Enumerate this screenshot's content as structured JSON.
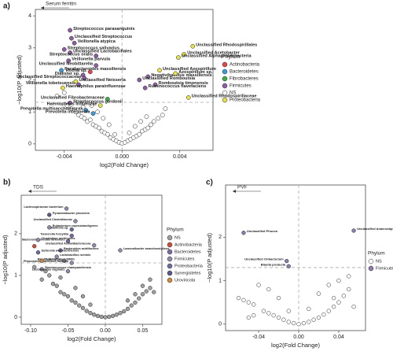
{
  "chart_data": [
    {
      "type": "scatter",
      "panel": "a)",
      "title": "Serum ferritin",
      "xlabel": "log2(Fold Change)",
      "ylabel": "−log10(P adjusted)",
      "xlim": [
        -0.006,
        0.0063
      ],
      "ylim": [
        -0.2,
        4.2
      ],
      "xticks": [
        -0.004,
        {
          "value": 0,
          "label": "0.000"
        },
        0.004
      ],
      "yticks": [
        0,
        1,
        2,
        3,
        4
      ],
      "hline": 1.3,
      "vline": 0,
      "legend_title": "Phylum",
      "series": [
        {
          "name": "Actinobacteria",
          "color": "#e0464b",
          "x": [
            -0.0022
          ],
          "y": [
            2.25
          ],
          "labels": [
            "Rothia sp."
          ]
        },
        {
          "name": "Bacteroidetes",
          "color": "#3a9bd9",
          "x": [
            -0.0042,
            -0.0025,
            -0.002
          ],
          "y": [
            2.3,
            1.05,
            0.95
          ],
          "labels": [
            "Parabacteroides massiliensis",
            "Prevotella multisaccharivorax",
            "Prevotella intermedia"
          ]
        },
        {
          "name": "Fibrobacteres",
          "color": "#3fae49",
          "x": [
            -0.001
          ],
          "y": [
            1.4
          ],
          "labels": [
            "Unclassified Fibrobacteraceae"
          ]
        },
        {
          "name": "Firmicutes",
          "color": "#8e5ea2",
          "x": [
            -0.0036,
            -0.0035,
            -0.0033,
            -0.004,
            -0.0036,
            -0.0037,
            -0.0018,
            -0.0018,
            -0.0027,
            -0.0026,
            -0.003,
            -0.0036,
            0.0018,
            0.0012,
            0.0023,
            0.0016
          ],
          "y": [
            3.55,
            3.3,
            3.15,
            2.95,
            2.85,
            2.6,
            2.75,
            2.45,
            2.15,
            2.05,
            1.85,
            1.28,
            2.1,
            2.0,
            1.85,
            1.75
          ],
          "labels": [
            "Streptococcus parasanguinis",
            "Unclassified Streptococcus",
            "Veillonella atypica",
            "Streptococcus salivarius",
            "Unclassified Lactobacillales",
            "Veillonella parvula",
            "Streptococcus oralis",
            "Unclassified Neobittarella",
            "Dialister sp.",
            "Unclassified Streptococcaceae",
            "Veillonella tobetsuensis",
            "Streptococcus gordonii",
            "Negativibacillus massiliensis",
            "Unclassified Romboutsia",
            "Romboutsia timonensis",
            "Ruminococcus flavefaciens"
          ]
        },
        {
          "name": "NS",
          "color": "#ffffff",
          "x": [
            -0.0045,
            -0.004,
            -0.0038,
            -0.0035,
            -0.0032,
            -0.003,
            -0.0028,
            -0.0026,
            -0.0024,
            -0.0022,
            -0.002,
            -0.0018,
            -0.0016,
            -0.0014,
            -0.0012,
            -0.001,
            -0.0008,
            -0.0006,
            -0.0004,
            -0.0002,
            0.0,
            0.0002,
            0.0004,
            0.0006,
            0.0008,
            0.001,
            0.0012,
            0.0014,
            0.0016,
            0.0018,
            0.002,
            0.0022,
            0.0025,
            0.0028,
            0.003,
            -0.0021,
            -0.0017,
            -0.0013,
            -0.0009,
            -0.0005,
            0.0005,
            0.0009,
            0.0013,
            0.0017,
            -0.0027
          ],
          "y": [
            1.5,
            1.6,
            1.2,
            1.1,
            1.0,
            0.9,
            0.85,
            0.8,
            0.7,
            0.75,
            0.6,
            0.55,
            0.5,
            0.4,
            0.35,
            0.3,
            0.2,
            0.15,
            0.1,
            0.05,
            0.02,
            0.05,
            0.1,
            0.15,
            0.2,
            0.25,
            0.3,
            0.4,
            0.45,
            0.5,
            0.6,
            0.7,
            0.8,
            0.9,
            1.1,
            1.2,
            1.0,
            0.8,
            0.6,
            0.3,
            0.35,
            0.55,
            0.7,
            0.85,
            1.15
          ]
        },
        {
          "name": "Proteobacteria",
          "color": "#e6e04a",
          "x": [
            -0.0032,
            -0.0041,
            -0.0015,
            0.0049,
            0.0043,
            0.0039,
            0.0026,
            0.0037,
            0.0046
          ],
          "y": [
            1.95,
            1.75,
            1.2,
            3.05,
            2.8,
            2.7,
            2.3,
            2.2,
            1.45
          ],
          "labels": [
            "Unclassified Neisseria",
            "Haemophilus parainfluenzae",
            "Haemophilus influenzae",
            "Unclassified Rhodospirillales",
            "Unclassified Acetobacter",
            "Unclassified Alphaproteobacteria",
            "Unclassified Azospirillum",
            "Azospirillum sp.",
            "Unclassified Rhodospirillaceae"
          ]
        }
      ]
    },
    {
      "type": "scatter",
      "panel": "b)",
      "title": "TDS",
      "xlabel": "log2(Fold Change)",
      "ylabel": "−log10(P adjusted)",
      "xlim": [
        -0.1126,
        0.0758
      ],
      "ylim": [
        -0.17,
        2.92
      ],
      "xticks": [
        {
          "value": -0.1,
          "label": "-0.10"
        },
        -0.05,
        {
          "value": 0,
          "label": "0.00"
        },
        0.05
      ],
      "yticks": [
        0,
        1,
        2
      ],
      "hline": 1.3,
      "vline": 0,
      "legend_title": "Phylum",
      "series": [
        {
          "name": "NS",
          "color": "#a0a0a0",
          "x": [
            -0.095,
            -0.085,
            -0.075,
            -0.07,
            -0.065,
            -0.06,
            -0.055,
            -0.05,
            -0.045,
            -0.04,
            -0.035,
            -0.03,
            -0.025,
            -0.02,
            -0.015,
            -0.01,
            -0.005,
            0.0,
            0.005,
            0.01,
            0.015,
            0.02,
            0.025,
            0.03,
            0.035,
            0.04,
            0.045,
            0.05,
            0.055,
            0.06,
            -0.08,
            -0.06,
            -0.04,
            -0.03,
            -0.02,
            0.03,
            0.04,
            0.05,
            0.06,
            0.065
          ],
          "y": [
            1.2,
            0.9,
            1.0,
            0.8,
            0.75,
            0.6,
            0.55,
            0.5,
            0.4,
            0.35,
            0.28,
            0.22,
            0.15,
            0.1,
            0.06,
            0.03,
            0.01,
            0.0,
            0.01,
            0.03,
            0.06,
            0.1,
            0.14,
            0.2,
            0.28,
            0.35,
            0.45,
            0.55,
            0.62,
            0.7,
            1.1,
            0.95,
            0.7,
            0.5,
            0.3,
            0.4,
            0.55,
            0.75,
            0.9,
            0.6
          ]
        },
        {
          "name": "Actinobacteria",
          "color": "#c9503b",
          "x": [
            -0.095
          ],
          "y": [
            1.7
          ],
          "labels": [
            null
          ]
        },
        {
          "name": "Bacteroidetes",
          "color": "#7c6aa6",
          "x": [
            -0.045,
            -0.05,
            -0.06
          ],
          "y": [
            1.95,
            1.82,
            1.6
          ],
          "labels": [
            "Tannerella forsythia",
            "Bacteroides mediterraneensis",
            "Bacteroides acidifaciens"
          ]
        },
        {
          "name": "Firmicutes",
          "color": "#8d8dab",
          "x": [
            -0.052,
            -0.04,
            -0.075,
            -0.09,
            -0.085,
            -0.065,
            -0.055,
            -0.045,
            -0.05,
            0.02,
            -0.015
          ],
          "y": [
            2.6,
            2.3,
            2.15,
            1.85,
            1.15,
            1.45,
            1.35,
            1.3,
            1.1,
            1.6,
            1.72
          ],
          "labels": [
            "Lachnospiraceae bacterium",
            "Unclassified Clostridiaceae",
            "Eubacterium coprostanoligenes",
            "Clostridium perfringens",
            "Ruminococcus champanellensis",
            "Lactobacillus ruminis",
            "Blautia producta",
            "Phascolarctobacterium faecium",
            "Lactobacillus vaginalis",
            "Lawsonibacter asaccharolyticus",
            "Unclassified Acutalibacteraceae"
          ]
        },
        {
          "name": "Proteobacteria",
          "color": "#6b6fa0",
          "x": [
            -0.09,
            -0.045
          ],
          "y": [
            1.55,
            2.1
          ],
          "labels": [
            "Sutterella wadsworthensis",
            "Mailhella sp."
          ]
        },
        {
          "name": "Synergistetes",
          "color": "#5a5a8a",
          "x": [
            -0.075
          ],
          "y": [
            2.45
          ],
          "labels": [
            "Pyramidobacter piscolens"
          ]
        },
        {
          "name": "Uroviricota",
          "color": "#d08a3a",
          "x": [
            -0.085
          ],
          "y": [
            1.35
          ],
          "labels": [
            "Cellulophage LMM01"
          ]
        }
      ]
    },
    {
      "type": "scatter",
      "panel": "c)",
      "title": "PVF",
      "xlabel": "log2(Fold Change)",
      "ylabel": "−log10(P adjusted)",
      "xlim": [
        -0.073,
        0.0667
      ],
      "ylim": [
        -0.15,
        3.2
      ],
      "xticks": [
        -0.04,
        {
          "value": 0,
          "label": "0.00"
        },
        0.04
      ],
      "yticks": [
        0,
        1,
        2
      ],
      "hline": 1.3,
      "vline": 0,
      "legend_title": "Phylum",
      "series": [
        {
          "name": "NS",
          "color": "#ffffff",
          "x": [
            -0.06,
            -0.055,
            -0.05,
            -0.045,
            -0.04,
            -0.035,
            -0.03,
            -0.025,
            -0.02,
            -0.015,
            -0.01,
            -0.005,
            0.0,
            0.005,
            0.01,
            0.015,
            0.02,
            0.025,
            0.03,
            0.035,
            0.04,
            0.045,
            0.05,
            -0.045,
            -0.03,
            -0.02,
            0.02,
            0.03,
            0.04,
            0.05,
            -0.01,
            0.01,
            0.055,
            -0.05,
            0.035
          ],
          "y": [
            0.6,
            0.55,
            0.5,
            0.45,
            0.9,
            0.3,
            0.25,
            0.2,
            0.15,
            0.1,
            0.05,
            0.02,
            0.0,
            0.02,
            0.05,
            0.1,
            0.15,
            0.22,
            0.3,
            0.4,
            0.5,
            0.65,
            0.8,
            0.2,
            0.8,
            0.6,
            0.7,
            0.9,
            1.0,
            1.1,
            0.3,
            0.35,
            0.4,
            0.15,
            0.6
          ]
        },
        {
          "name": "Firmicutes",
          "color": "#8e7cb0",
          "x": [
            -0.055,
            0.055,
            -0.012,
            -0.01
          ],
          "y": [
            2.1,
            2.15,
            1.45,
            1.33
          ],
          "labels": [
            "Unclassified Phocea",
            "Unclassified Anaerostipes",
            "Unclassified Oribacterium",
            "Blautia producta"
          ]
        }
      ]
    }
  ]
}
